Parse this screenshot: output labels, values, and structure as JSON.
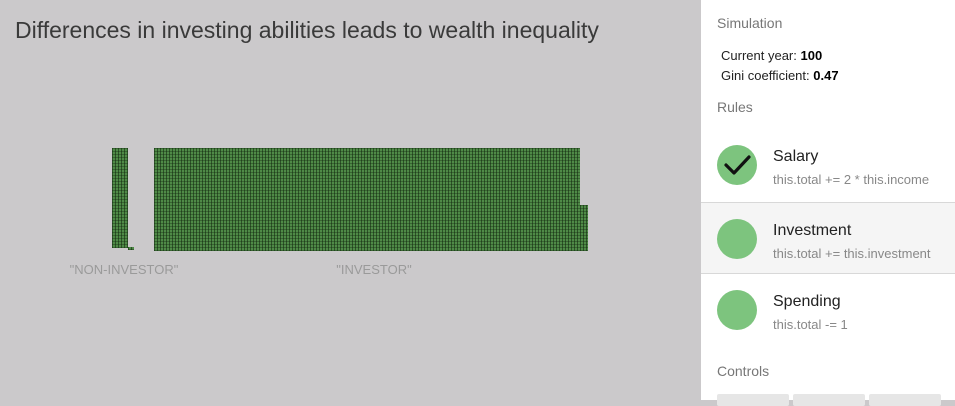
{
  "main": {
    "title": "Differences in investing abilities leads to wealth inequality",
    "groups": [
      {
        "label": "\"NON-INVESTOR\""
      },
      {
        "label": "\"INVESTOR\""
      }
    ]
  },
  "sidebar": {
    "simulation_heading": "Simulation",
    "current_year_label": "Current year: ",
    "current_year_value": "100",
    "gini_label": "Gini coefficient: ",
    "gini_value": "0.47",
    "rules_heading": "Rules",
    "rules": [
      {
        "name": "Salary",
        "code": "this.total += 2 * this.income",
        "enabled": true
      },
      {
        "name": "Investment",
        "code": "this.total += this.investment",
        "enabled": false
      },
      {
        "name": "Spending",
        "code": "this.total -= 1",
        "enabled": false
      }
    ],
    "controls_heading": "Controls"
  },
  "colors": {
    "block_green": "#4f8a47",
    "rule_circle": "#7dc47e",
    "background": "#cbc9cb"
  }
}
